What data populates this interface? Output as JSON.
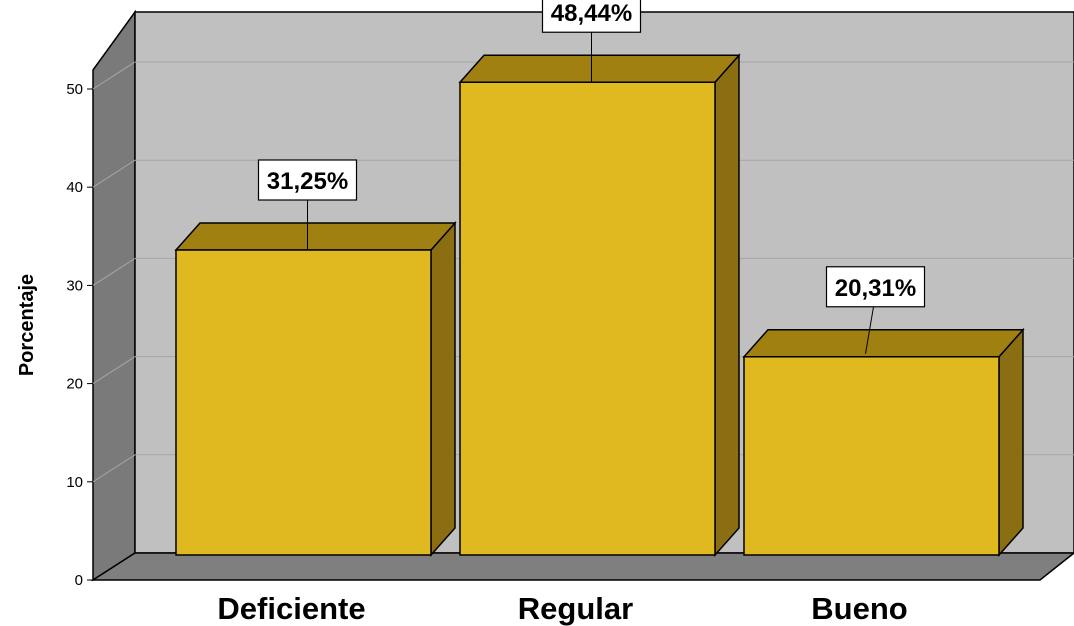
{
  "chart_data": {
    "type": "bar",
    "style": "3d",
    "categories": [
      "Deficiente",
      "Regular",
      "Bueno"
    ],
    "values": [
      31.25,
      48.44,
      20.31
    ],
    "data_labels": [
      "31,25%",
      "48,44%",
      "20,31%"
    ],
    "ylabel": "Porcentaje",
    "xlabel": "",
    "ylim": [
      0,
      50
    ],
    "y_ticks": [
      "0",
      "10",
      "20",
      "30",
      "40",
      "50"
    ],
    "grid": true,
    "legend": "none",
    "colors": {
      "bar_front": "#E0B820",
      "bar_top": "#A08010",
      "bar_side": "#8C6E12",
      "back_wall": "#C0C0C0",
      "left_wall": "#7A7A7A",
      "floor": "#7F7F7F",
      "grid_line": "#A6A6A6"
    }
  }
}
